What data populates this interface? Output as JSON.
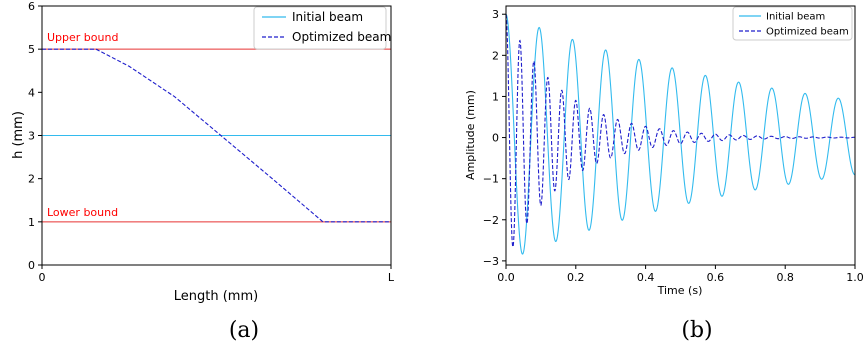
{
  "colors": {
    "initial": "#33bbee",
    "optimized": "#1f1fcc",
    "bound": "#e63333",
    "bound_text": "#ff0000"
  },
  "chart_data": [
    {
      "type": "line",
      "caption": "(a)",
      "title": "",
      "xlabel": "Length (mm)",
      "ylabel": "h (mm)",
      "x_ticks": [
        "0",
        "L"
      ],
      "x_tick_positions": [
        0,
        1
      ],
      "y_ticks": [
        "0",
        "1",
        "2",
        "3",
        "4",
        "5",
        "6"
      ],
      "xlim": [
        0,
        1
      ],
      "ylim": [
        0,
        6
      ],
      "legend": {
        "placement": "top-right",
        "entries": [
          "Initial beam",
          "Optimized beam"
        ]
      },
      "annotations": [
        {
          "text": "Upper bound",
          "y": 5
        },
        {
          "text": "Lower bound",
          "y": 1
        }
      ],
      "series": [
        {
          "name": "Initial beam",
          "style": "solid",
          "x": [
            0,
            1
          ],
          "y": [
            3,
            3
          ]
        },
        {
          "name": "Optimized beam",
          "style": "dashed",
          "x": [
            0,
            0.155,
            0.25,
            0.38,
            0.52,
            0.66,
            0.805,
            1.0
          ],
          "y": [
            5,
            5,
            4.6,
            3.9,
            2.95,
            2.0,
            1.0,
            1.0
          ]
        }
      ],
      "reference_lines": [
        {
          "label": "Upper bound",
          "y": 5
        },
        {
          "label": "Lower bound",
          "y": 1
        }
      ]
    },
    {
      "type": "line",
      "caption": "(b)",
      "title": "",
      "xlabel": "Time (s)",
      "ylabel": "Amplitude (mm)",
      "x_ticks": [
        "0.0",
        "0.2",
        "0.4",
        "0.6",
        "0.8",
        "1.0"
      ],
      "y_ticks": [
        "-3",
        "-2",
        "-1",
        "0",
        "1",
        "2",
        "3"
      ],
      "xlim": [
        0,
        1
      ],
      "ylim": [
        -3.1,
        3.2
      ],
      "legend": {
        "placement": "top-right",
        "entries": [
          "Initial beam",
          "Optimized beam"
        ]
      },
      "series": [
        {
          "name": "Initial beam",
          "style": "solid",
          "signal": {
            "kind": "damped_cosine",
            "amplitude": 3.0,
            "frequency_hz": 10.5,
            "decay_per_s": 1.2
          }
        },
        {
          "name": "Optimized beam",
          "style": "dashed",
          "signal": {
            "kind": "damped_cosine",
            "amplitude": 3.0,
            "frequency_hz": 25.0,
            "decay_per_s": 6.0
          }
        }
      ]
    }
  ]
}
